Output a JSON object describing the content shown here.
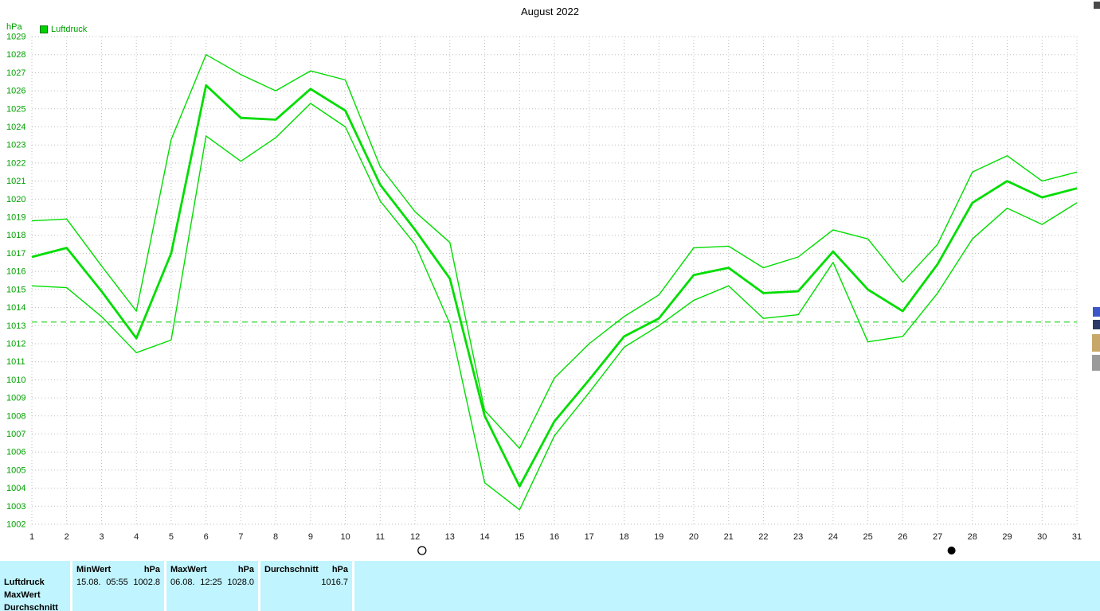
{
  "window": {
    "title": "August 2022"
  },
  "chart": {
    "unit_label": "hPa",
    "legend": {
      "label": "Luftdruck"
    }
  },
  "chart_data": {
    "type": "line",
    "title": "August 2022",
    "xlabel": "",
    "ylabel": "hPa",
    "ylim": [
      1002,
      1029
    ],
    "grid": true,
    "legend_position": "top-left",
    "reference_line": 1013.2,
    "x": [
      1,
      2,
      3,
      4,
      5,
      6,
      7,
      8,
      9,
      10,
      11,
      12,
      13,
      14,
      15,
      16,
      17,
      18,
      19,
      20,
      21,
      22,
      23,
      24,
      25,
      26,
      27,
      28,
      29,
      30,
      31
    ],
    "series": [
      {
        "name": "MaxWert",
        "values": [
          1018.8,
          1018.9,
          1016.3,
          1013.8,
          1023.3,
          1028.0,
          1026.9,
          1026.0,
          1027.1,
          1026.6,
          1021.8,
          1019.3,
          1017.6,
          1008.3,
          1006.2,
          1010.1,
          1012.0,
          1013.5,
          1014.7,
          1017.3,
          1017.4,
          1016.2,
          1016.8,
          1018.3,
          1017.8,
          1015.4,
          1017.5,
          1021.5,
          1022.4,
          1021.0,
          1021.5
        ]
      },
      {
        "name": "Durchschnitt",
        "values": [
          1016.8,
          1017.3,
          1014.9,
          1012.3,
          1017.0,
          1026.3,
          1024.5,
          1024.4,
          1026.1,
          1024.9,
          1020.8,
          1018.3,
          1015.6,
          1008.0,
          1004.1,
          1007.7,
          1010.0,
          1012.4,
          1013.4,
          1015.8,
          1016.2,
          1014.8,
          1014.9,
          1017.1,
          1015.0,
          1013.8,
          1016.4,
          1019.8,
          1021.0,
          1020.1,
          1020.6
        ]
      },
      {
        "name": "MinWert",
        "values": [
          1015.2,
          1015.1,
          1013.5,
          1011.5,
          1012.2,
          1023.5,
          1022.1,
          1023.4,
          1025.3,
          1024.0,
          1019.9,
          1017.5,
          1013.1,
          1004.3,
          1002.8,
          1006.9,
          1009.3,
          1011.8,
          1013.0,
          1014.4,
          1015.2,
          1013.4,
          1013.6,
          1016.5,
          1012.1,
          1012.4,
          1014.8,
          1017.8,
          1019.5,
          1018.6,
          1019.8
        ]
      }
    ]
  },
  "markers": {
    "full_moon_day": 12.2,
    "new_moon_day": 27.4
  },
  "stats_table": {
    "row_labels": [
      "Luftdruck",
      "MaxWert",
      "Durchschnitt"
    ],
    "min": {
      "header": "MinWert",
      "unit": "hPa",
      "date": "15.08.",
      "time": "05:55",
      "value": "1002.8"
    },
    "max": {
      "header": "MaxWert",
      "unit": "hPa",
      "date": "06.08.",
      "time": "12:25",
      "value": "1028.0"
    },
    "avg": {
      "header": "Durchschnitt",
      "unit": "hPa",
      "value": "1016.7"
    }
  },
  "colors": {
    "series": "#00dd00",
    "axis_text": "#00a000",
    "x_axis_text": "#1a1a1a",
    "grid": "#bdbdbd",
    "reference": "#55dd55",
    "table_bg": "#c0f4fe"
  }
}
